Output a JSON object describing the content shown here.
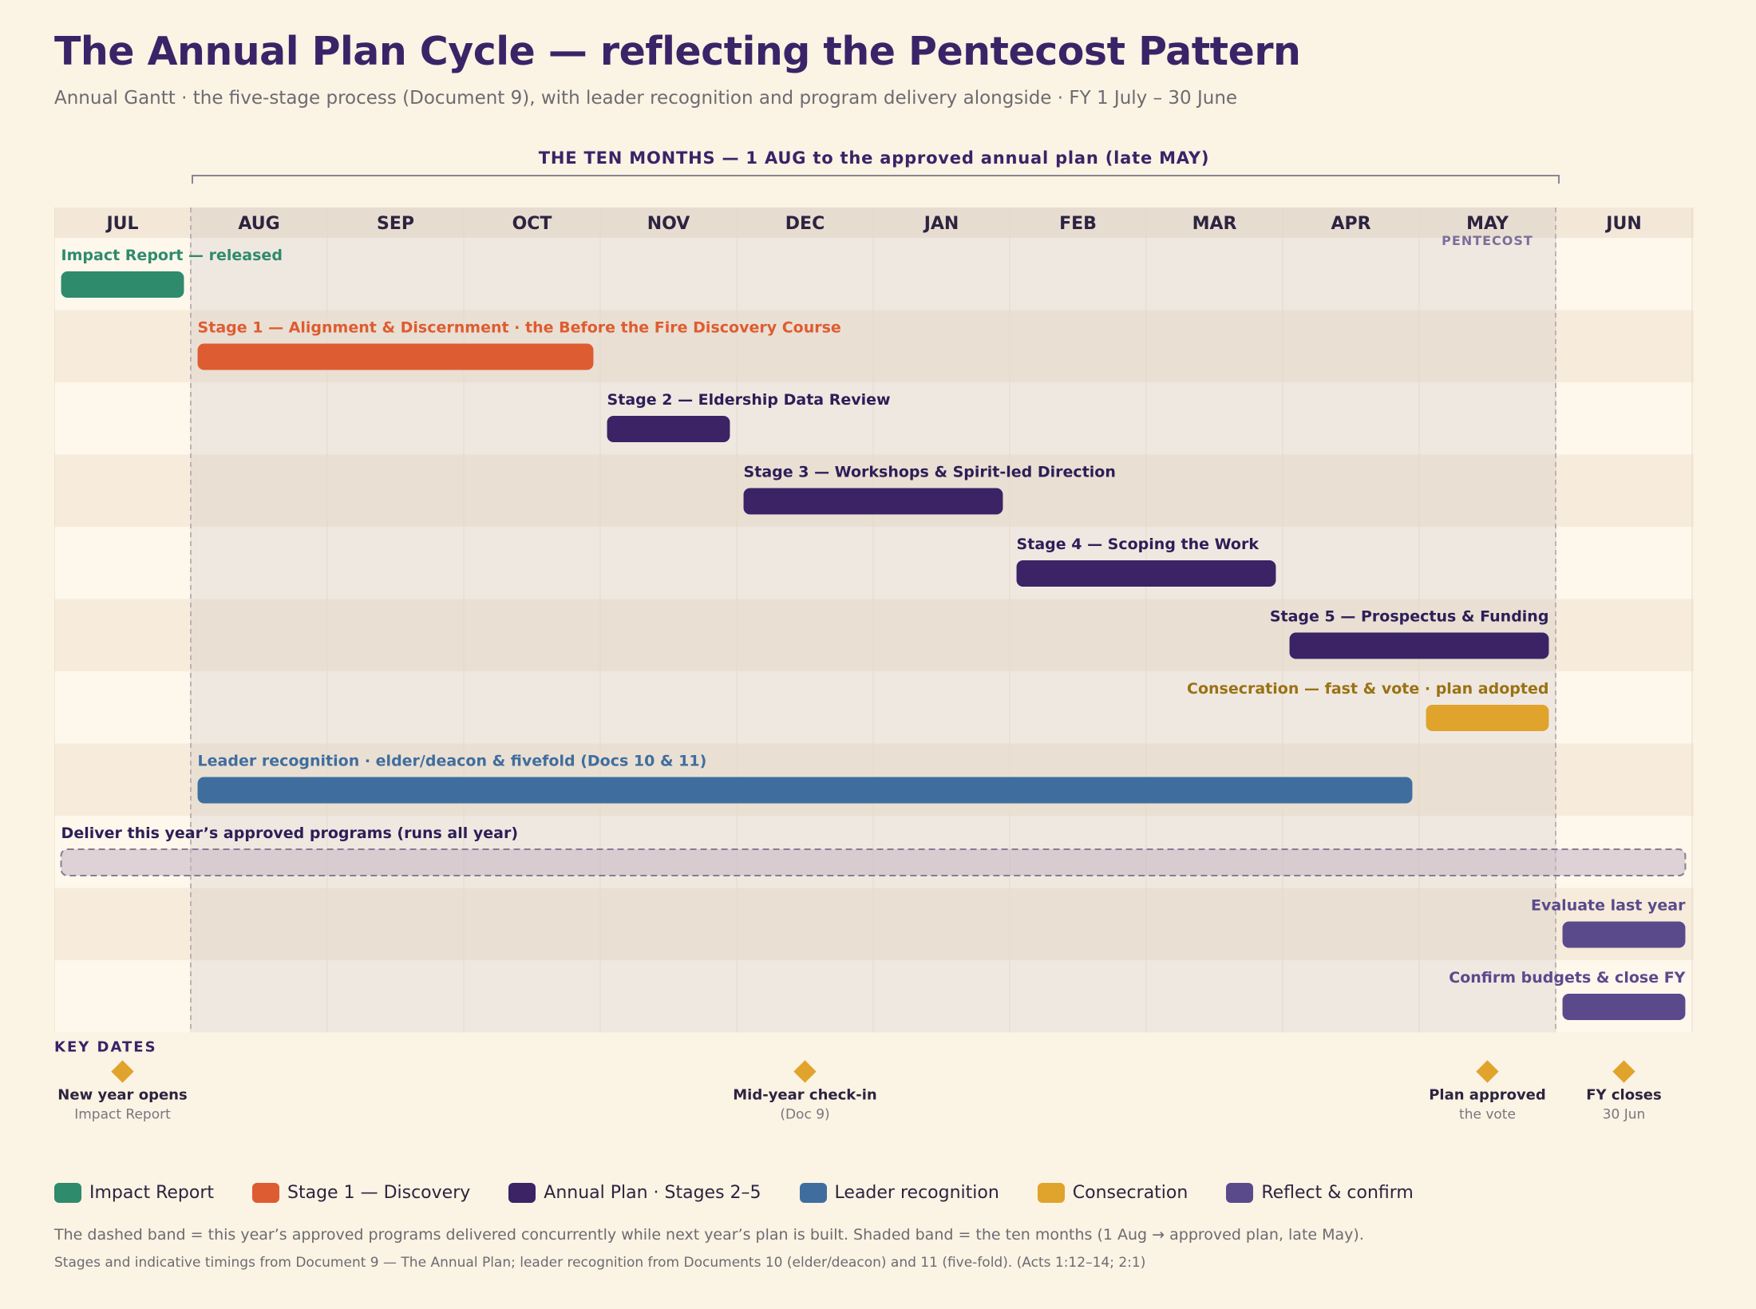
{
  "header": {
    "title": "The Annual Plan Cycle — reflecting the Pentecost Pattern",
    "subtitle": "Annual Gantt · the five-stage process (Document 9), with leader recognition and program delivery alongside · FY 1 July – 30 June"
  },
  "chart_data": {
    "type": "gantt",
    "months": [
      "JUL",
      "AUG",
      "SEP",
      "OCT",
      "NOV",
      "DEC",
      "JAN",
      "FEB",
      "MAR",
      "APR",
      "MAY",
      "JUN"
    ],
    "month_note": {
      "month": "MAY",
      "text": "PENTECOST"
    },
    "span": {
      "label": "THE TEN MONTHS — 1 AUG to the approved annual plan (late MAY)",
      "start": 1,
      "end": 11
    },
    "tasks": [
      {
        "label": "Impact Report — released",
        "start": 0.05,
        "end": 0.95,
        "color": "#2e8b6b",
        "label_color": "#2e8b6b",
        "align": "left"
      },
      {
        "label": "Stage 1 — Alignment & Discernment · the Before the Fire Discovery Course",
        "start": 1.05,
        "end": 3.95,
        "color": "#de5c31",
        "label_color": "#de5c31",
        "align": "left"
      },
      {
        "label": "Stage 2 — Eldership Data Review",
        "start": 4.05,
        "end": 4.95,
        "color": "#3b2366",
        "label_color": "#2c1f57",
        "align": "left"
      },
      {
        "label": "Stage 3 — Workshops & Spirit-led Direction",
        "start": 5.05,
        "end": 6.95,
        "color": "#3b2366",
        "label_color": "#2c1f57",
        "align": "left"
      },
      {
        "label": "Stage 4 — Scoping the Work",
        "start": 7.05,
        "end": 8.95,
        "color": "#3b2366",
        "label_color": "#2c1f57",
        "align": "left"
      },
      {
        "label": "Stage 5 — Prospectus & Funding",
        "start": 9.05,
        "end": 10.95,
        "color": "#3b2366",
        "label_color": "#2c1f57",
        "align": "right"
      },
      {
        "label": "Consecration — fast & vote · plan adopted",
        "start": 10.05,
        "end": 10.95,
        "color": "#e0a32c",
        "label_color": "#9a7214",
        "align": "right"
      },
      {
        "label": "Leader recognition · elder/deacon & fivefold (Docs 10 & 11)",
        "start": 1.05,
        "end": 9.95,
        "color": "#3f6e9e",
        "label_color": "#3f6e9e",
        "align": "left"
      },
      {
        "label": "Deliver this year’s approved programs (runs all year)",
        "start": 0.05,
        "end": 11.95,
        "color": "#d7cbd3",
        "label_color": "#2c1f57",
        "align": "left",
        "dashed": true
      },
      {
        "label": "Evaluate last year",
        "start": 11.05,
        "end": 11.95,
        "color": "#5a4a8c",
        "label_color": "#5a4a8c",
        "align": "right"
      },
      {
        "label": "Confirm budgets & close FY",
        "start": 11.05,
        "end": 11.95,
        "color": "#5a4a8c",
        "label_color": "#5a4a8c",
        "align": "right"
      }
    ],
    "key_dates_label": "KEY DATES",
    "key_dates": [
      {
        "label": "New year opens",
        "sub": "Impact Report",
        "at": 0.5
      },
      {
        "label": "Mid-year check-in",
        "sub": "(Doc 9)",
        "at": 5.5
      },
      {
        "label": "Plan approved",
        "sub": "the vote",
        "at": 10.5
      },
      {
        "label": "FY closes",
        "sub": "30 Jun",
        "at": 11.5
      }
    ],
    "marker_color": "#e0a32c"
  },
  "legend": [
    {
      "label": "Impact Report",
      "color": "#2e8b6b"
    },
    {
      "label": "Stage 1 — Discovery",
      "color": "#de5c31"
    },
    {
      "label": "Annual Plan · Stages 2–5",
      "color": "#3b2366"
    },
    {
      "label": "Leader recognition",
      "color": "#3f6e9e"
    },
    {
      "label": "Consecration",
      "color": "#e0a32c"
    },
    {
      "label": "Reflect & confirm",
      "color": "#5a4a8c"
    }
  ],
  "footnote": "The dashed band = this year’s approved programs delivered concurrently while next year’s plan is built. Shaded band = the ten months (1 Aug → approved plan, late May).",
  "source": "Stages and indicative timings from Document 9 — The Annual Plan; leader recognition from Documents 10 (elder/deacon) and 11 (five-fold). (Acts 1:12–14; 2:1)"
}
